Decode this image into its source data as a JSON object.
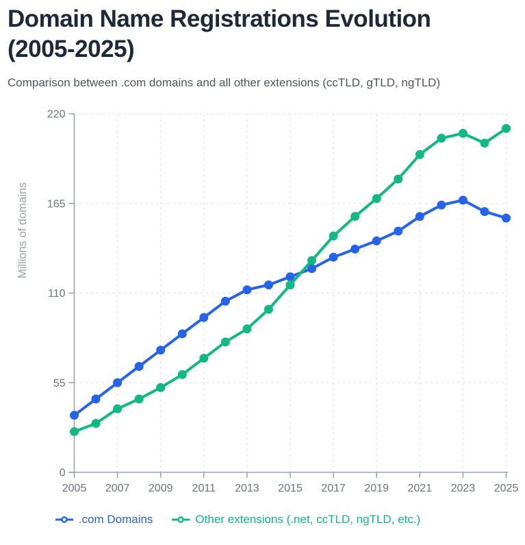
{
  "header": {
    "title": "Domain Name Registrations Evolution (2005-2025)",
    "subtitle": "Comparison between .com domains and all other extensions (ccTLD, gTLD, ngTLD)"
  },
  "chart_data": {
    "type": "line",
    "title": "Domain Name Registrations Evolution (2005-2025)",
    "subtitle": "Comparison between .com domains and all other extensions (ccTLD, gTLD, ngTLD)",
    "xlabel": "",
    "ylabel": "Millions of domains",
    "xlim": [
      2005,
      2025
    ],
    "ylim": [
      0,
      220
    ],
    "yticks": [
      0,
      55,
      110,
      165,
      220
    ],
    "xticks": [
      2005,
      2007,
      2009,
      2011,
      2013,
      2015,
      2017,
      2019,
      2021,
      2023,
      2025
    ],
    "grid": "dashed",
    "legend_position": "bottom",
    "x": [
      2005,
      2006,
      2007,
      2008,
      2009,
      2010,
      2011,
      2012,
      2013,
      2014,
      2015,
      2016,
      2017,
      2018,
      2019,
      2020,
      2021,
      2022,
      2023,
      2024,
      2025
    ],
    "series": [
      {
        "name": ".com Domains",
        "color": "#2563eb",
        "values": [
          35,
          45,
          55,
          65,
          75,
          85,
          95,
          105,
          112,
          115,
          120,
          125,
          132,
          137,
          142,
          148,
          157,
          164,
          167,
          160,
          156
        ]
      },
      {
        "name": "Other extensions (.net, ccTLD, ngTLD, etc.)",
        "color": "#10b981",
        "values": [
          25,
          30,
          39,
          45,
          52,
          60,
          70,
          80,
          88,
          100,
          115,
          130,
          145,
          157,
          168,
          180,
          195,
          205,
          208,
          202,
          211
        ]
      }
    ]
  }
}
